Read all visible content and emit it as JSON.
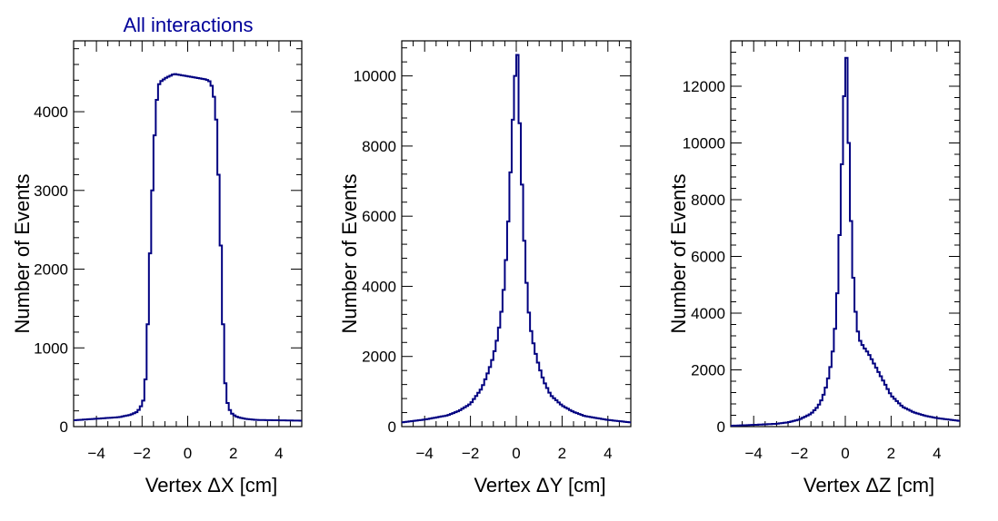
{
  "title": "All interactions",
  "colors": {
    "line": "#000080",
    "title": "#000099",
    "frame": "#000000"
  },
  "chart_data": [
    {
      "type": "histogram",
      "title": "All interactions",
      "xlabel": "Vertex ΔX [cm]",
      "ylabel": "Number of Events",
      "xlim": [
        -5,
        5
      ],
      "ylim": [
        0,
        4900
      ],
      "xticks": [
        -4,
        -2,
        0,
        2,
        4
      ],
      "xtick_labels": [
        "−4",
        "−2",
        "0",
        "2",
        "4"
      ],
      "yticks": [
        0,
        1000,
        2000,
        3000,
        4000
      ],
      "ytick_labels": [
        "0",
        "1000",
        "2000",
        "3000",
        "4000"
      ],
      "bin_width": 0.1,
      "x": [
        -5.0,
        -4.0,
        -3.0,
        -2.5,
        -2.2,
        -2.0,
        -1.9,
        -1.85,
        -1.8,
        -1.75,
        -1.7,
        -1.65,
        -1.6,
        -1.55,
        -1.5,
        -1.45,
        -1.4,
        -1.35,
        -1.3,
        -1.25,
        -1.2,
        -1.1,
        -1.0,
        -0.9,
        -0.8,
        -0.6,
        -0.4,
        -0.2,
        0.0,
        0.2,
        0.4,
        0.6,
        0.8,
        1.0,
        1.1,
        1.2,
        1.25,
        1.3,
        1.35,
        1.4,
        1.45,
        1.5,
        1.55,
        1.6,
        1.65,
        1.7,
        1.75,
        1.8,
        1.85,
        1.9,
        2.0,
        2.2,
        2.5,
        3.0,
        4.0,
        5.0
      ],
      "y": [
        80,
        100,
        120,
        150,
        190,
        280,
        380,
        600,
        900,
        1300,
        1700,
        2200,
        2600,
        3000,
        3400,
        3700,
        3950,
        4150,
        4280,
        4350,
        4380,
        4400,
        4420,
        4440,
        4450,
        4480,
        4470,
        4460,
        4450,
        4440,
        4430,
        4420,
        4410,
        4380,
        4280,
        4100,
        3900,
        3600,
        3200,
        2800,
        2300,
        1800,
        1300,
        850,
        550,
        380,
        300,
        250,
        210,
        180,
        150,
        120,
        100,
        85,
        80,
        75
      ]
    },
    {
      "type": "histogram",
      "xlabel": "Vertex ΔY [cm]",
      "ylabel": "Number of Events",
      "xlim": [
        -5,
        5
      ],
      "ylim": [
        0,
        11000
      ],
      "xticks": [
        -4,
        -2,
        0,
        2,
        4
      ],
      "xtick_labels": [
        "−4",
        "−2",
        "0",
        "2",
        "4"
      ],
      "yticks": [
        0,
        2000,
        4000,
        6000,
        8000,
        10000
      ],
      "ytick_labels": [
        "0",
        "2000",
        "4000",
        "6000",
        "8000",
        "10000"
      ],
      "bin_width": 0.1,
      "x": [
        -5.0,
        -4.0,
        -3.0,
        -2.5,
        -2.0,
        -1.5,
        -1.2,
        -1.0,
        -0.8,
        -0.6,
        -0.5,
        -0.4,
        -0.3,
        -0.2,
        -0.1,
        0.0,
        0.05,
        0.1,
        0.2,
        0.3,
        0.4,
        0.5,
        0.6,
        0.8,
        1.0,
        1.2,
        1.5,
        2.0,
        2.5,
        3.0,
        4.0,
        5.0
      ],
      "y": [
        120,
        200,
        320,
        450,
        650,
        1100,
        1600,
        2000,
        2600,
        3500,
        4300,
        5200,
        6500,
        8000,
        9500,
        10500,
        10600,
        9500,
        7800,
        6000,
        4600,
        3600,
        2900,
        2200,
        1700,
        1300,
        900,
        600,
        420,
        300,
        190,
        120
      ]
    },
    {
      "type": "histogram",
      "xlabel": "Vertex ΔZ [cm]",
      "ylabel": "Number of Events",
      "xlim": [
        -5,
        5
      ],
      "ylim": [
        0,
        13600
      ],
      "xticks": [
        -4,
        -2,
        0,
        2,
        4
      ],
      "xtick_labels": [
        "−4",
        "−2",
        "0",
        "2",
        "4"
      ],
      "yticks": [
        0,
        2000,
        4000,
        6000,
        8000,
        10000,
        12000
      ],
      "ytick_labels": [
        "0",
        "2000",
        "4000",
        "6000",
        "8000",
        "10000",
        "12000"
      ],
      "bin_width": 0.1,
      "x": [
        -5.0,
        -4.0,
        -3.0,
        -2.5,
        -2.0,
        -1.5,
        -1.2,
        -1.0,
        -0.8,
        -0.6,
        -0.5,
        -0.4,
        -0.3,
        -0.2,
        -0.1,
        0.0,
        0.05,
        0.1,
        0.2,
        0.3,
        0.4,
        0.5,
        0.6,
        0.8,
        1.0,
        1.2,
        1.4,
        1.6,
        1.8,
        2.0,
        2.5,
        3.0,
        3.5,
        4.0,
        4.5,
        5.0
      ],
      "y": [
        30,
        60,
        100,
        150,
        250,
        450,
        700,
        1000,
        1500,
        2300,
        3000,
        3900,
        5500,
        8000,
        10500,
        12800,
        13000,
        11500,
        8500,
        6000,
        4500,
        3600,
        3100,
        2800,
        2600,
        2300,
        2000,
        1700,
        1400,
        1100,
        700,
        500,
        380,
        300,
        250,
        200
      ]
    }
  ]
}
